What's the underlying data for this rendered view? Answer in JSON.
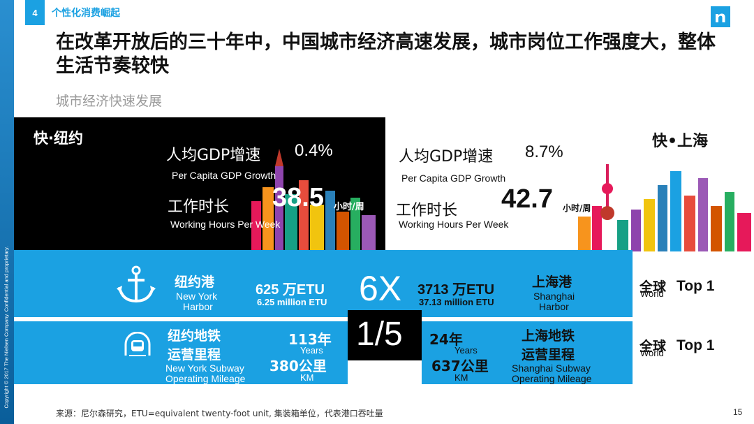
{
  "section": {
    "number": "4",
    "title": "个性化消费崛起"
  },
  "title": "在改革开放后的三十年中，中国城市经济高速发展，城市岗位工作强度大，整体生活节奏较快",
  "subtitle": "城市经济快速发展",
  "newyork": {
    "label": "快·纽约",
    "gdp_cn": "人均GDP增速",
    "gdp_value": "0.4%",
    "gdp_en": "Per Capita GDP Growth",
    "hours_cn": "工作时长",
    "hours_value": "38.5",
    "hours_unit": "小时/周",
    "hours_en": "Working Hours Per Week"
  },
  "shanghai": {
    "label": "快•上海",
    "gdp_cn": "人均GDP增速",
    "gdp_value": "8.7%",
    "gdp_en": "Per Capita GDP Growth",
    "hours_cn": "工作时长",
    "hours_value": "42.7",
    "hours_unit": "小时/周",
    "hours_en": "Working Hours Per Week"
  },
  "harbor": {
    "ny_cn": "纽约港",
    "ny_en1": "New York",
    "ny_en2": "Harbor",
    "ny_value": "625 万ETU",
    "ny_value_en": "6.25 million ETU",
    "ratio": "6X",
    "sh_value": "3713 万ETU",
    "sh_value_en": "37.13 million ETU",
    "sh_cn": "上海港",
    "sh_en1": "Shanghai",
    "sh_en2": "Harbor",
    "rank_cn": "全球",
    "rank_en": "World",
    "rank": "Top 1"
  },
  "subway": {
    "ny_cn1": "纽约地铁",
    "ny_cn2": "运营里程",
    "ny_en1": "New York Subway",
    "ny_en2": "Operating Mileage",
    "ny_years": "113年",
    "ny_years_en": "Years",
    "ny_km": "380公里",
    "ny_km_en": "KM",
    "ratio": "1/5",
    "sh_years": "24年",
    "sh_years_en": "Years",
    "sh_km": "637公里",
    "sh_km_en": "KM",
    "sh_cn1": "上海地铁",
    "sh_cn2": "运营里程",
    "sh_en1": "Shanghai Subway",
    "sh_en2": "Operating Mileage",
    "rank_cn": "全球",
    "rank_en": "World",
    "rank": "Top 1"
  },
  "footer": {
    "source": "来源：尼尔森研究，ETU=equivalent twenty-foot unit, 集装箱单位，代表港口吞吐量",
    "page": "15",
    "copyright": "Copyright © 2017 The Nielsen Company. Confidential and proprietary."
  },
  "colors": {
    "accent": "#1ba1e2",
    "black_panel": "#000000",
    "sidebar": "#0a5e9a"
  },
  "icons": {
    "logo": "nielsen-logo",
    "harbor": "anchor-icon",
    "subway": "subway-tunnel-icon"
  }
}
